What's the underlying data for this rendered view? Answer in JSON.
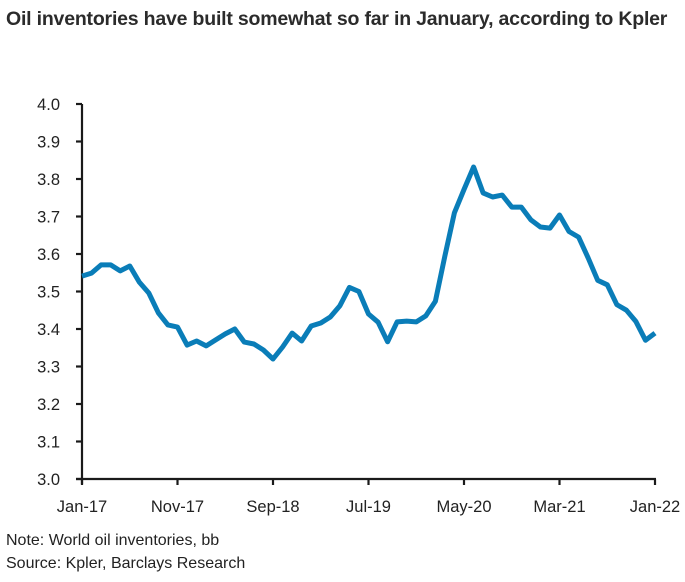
{
  "title": "Oil inventories have built somewhat so far in January, according to Kpler",
  "note": "Note: World oil inventories, bb",
  "source": "Source: Kpler, Barclays Research",
  "colors": {
    "line": "#0A7DB8",
    "axis": "#1a1a1a"
  },
  "chart_data": {
    "type": "line",
    "title": "Oil inventories have built somewhat so far in January, according to Kpler",
    "xlabel": "",
    "ylabel": "",
    "ylim": [
      3.0,
      4.0
    ],
    "yticks": [
      "4.0",
      "3.9",
      "3.8",
      "3.7",
      "3.6",
      "3.5",
      "3.4",
      "3.3",
      "3.2",
      "3.1",
      "3.0"
    ],
    "ytick_values": [
      4.0,
      3.9,
      3.8,
      3.7,
      3.6,
      3.5,
      3.4,
      3.3,
      3.2,
      3.1,
      3.0
    ],
    "xticks": [
      "Jan-17",
      "Nov-17",
      "Sep-18",
      "Jul-19",
      "May-20",
      "Mar-21",
      "Jan-22"
    ],
    "xtick_month_index": [
      0,
      10,
      20,
      30,
      40,
      50,
      60
    ],
    "grid": false,
    "legend": "none",
    "series": [
      {
        "name": "World oil inventories, bb",
        "x_start": "Jan-17",
        "frequency": "monthly",
        "values": [
          3.541,
          3.549,
          3.571,
          3.571,
          3.555,
          3.568,
          3.525,
          3.496,
          3.443,
          3.411,
          3.405,
          3.357,
          3.368,
          3.355,
          3.371,
          3.387,
          3.4,
          3.365,
          3.36,
          3.344,
          3.32,
          3.352,
          3.389,
          3.368,
          3.408,
          3.416,
          3.432,
          3.462,
          3.511,
          3.5,
          3.44,
          3.418,
          3.366,
          3.419,
          3.421,
          3.419,
          3.435,
          3.474,
          3.595,
          3.71,
          3.772,
          3.832,
          3.763,
          3.752,
          3.757,
          3.725,
          3.725,
          3.691,
          3.672,
          3.669,
          3.704,
          3.66,
          3.645,
          3.59,
          3.53,
          3.518,
          3.465,
          3.45,
          3.42,
          3.37,
          3.389
        ]
      }
    ]
  }
}
